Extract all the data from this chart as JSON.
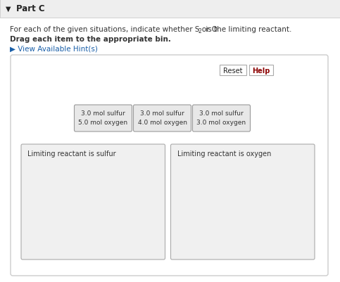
{
  "title": "Part C",
  "subtitle1": "For each of the given situations, indicate whether S or O",
  "subtitle1_sub": "2",
  "subtitle1_end": " is the limiting reactant.",
  "subtitle2": "Drag each item to the appropriate bin.",
  "hint_text": "View Available Hint(s)",
  "reset_btn": "Reset",
  "help_btn": "Help",
  "cards": [
    {
      "line1": "3.0 mol sulfur",
      "line2": "5.0 mol oxygen"
    },
    {
      "line1": "3.0 mol sulfur",
      "line2": "4.0 mol oxygen"
    },
    {
      "line1": "3.0 mol sulfur",
      "line2": "3.0 mol oxygen"
    }
  ],
  "bin1_label": "Limiting reactant is sulfur",
  "bin2_label": "Limiting reactant is oxygen",
  "bg_color": "#ffffff",
  "page_bg": "#f5f5f5",
  "panel_bg": "#ffffff",
  "panel_border": "#cccccc",
  "card_bg": "#e8e8e8",
  "card_border": "#999999",
  "bin_bg": "#f0f0f0",
  "bin_border": "#aaaaaa",
  "title_color": "#222222",
  "text_color": "#333333",
  "hint_color": "#1a5fa8",
  "btn_border": "#aaaaaa",
  "header_bg": "#eeeeee",
  "header_border": "#cccccc"
}
